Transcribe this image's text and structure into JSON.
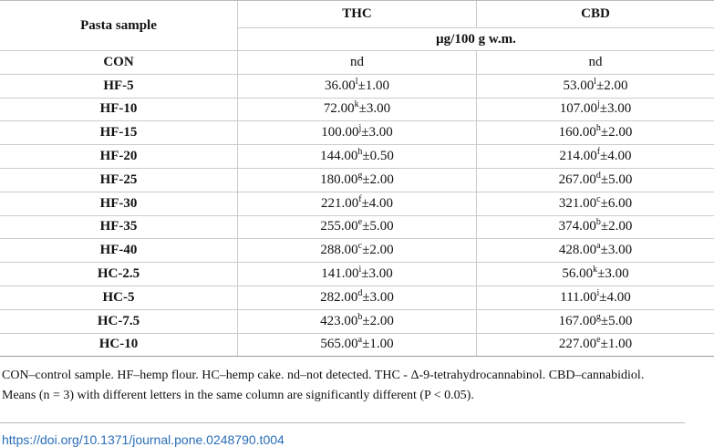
{
  "table": {
    "header": {
      "sample": "Pasta sample",
      "thc": "THC",
      "cbd": "CBD",
      "unit": "μg/100 g w.m."
    },
    "rows": [
      [
        "CON",
        "nd",
        "nd"
      ],
      [
        "HF-5",
        {
          "mean": "36.00",
          "letter": "l",
          "sd": "±1.00"
        },
        {
          "mean": "53.00",
          "letter": "l",
          "sd": "±2.00"
        }
      ],
      [
        "HF-10",
        {
          "mean": "72.00",
          "letter": "k",
          "sd": "±3.00"
        },
        {
          "mean": "107.00",
          "letter": "j",
          "sd": "±3.00"
        }
      ],
      [
        "HF-15",
        {
          "mean": "100.00",
          "letter": "j",
          "sd": "±3.00"
        },
        {
          "mean": "160.00",
          "letter": "h",
          "sd": "±2.00"
        }
      ],
      [
        "HF-20",
        {
          "mean": "144.00",
          "letter": "h",
          "sd": "±0.50"
        },
        {
          "mean": "214.00",
          "letter": "f",
          "sd": "±4.00"
        }
      ],
      [
        "HF-25",
        {
          "mean": "180.00",
          "letter": "g",
          "sd": "±2.00"
        },
        {
          "mean": "267.00",
          "letter": "d",
          "sd": "±5.00"
        }
      ],
      [
        "HF-30",
        {
          "mean": "221.00",
          "letter": "f",
          "sd": "±4.00"
        },
        {
          "mean": "321.00",
          "letter": "c",
          "sd": "±6.00"
        }
      ],
      [
        "HF-35",
        {
          "mean": "255.00",
          "letter": "e",
          "sd": "±5.00"
        },
        {
          "mean": "374.00",
          "letter": "b",
          "sd": "±2.00"
        }
      ],
      [
        "HF-40",
        {
          "mean": "288.00",
          "letter": "c",
          "sd": "±2.00"
        },
        {
          "mean": "428.00",
          "letter": "a",
          "sd": "±3.00"
        }
      ],
      [
        "HC-2.5",
        {
          "mean": "141.00",
          "letter": "i",
          "sd": "±3.00"
        },
        {
          "mean": "56.00",
          "letter": "k",
          "sd": "±3.00"
        }
      ],
      [
        "HC-5",
        {
          "mean": "282.00",
          "letter": "d",
          "sd": "±3.00"
        },
        {
          "mean": "111.00",
          "letter": "i",
          "sd": "±4.00"
        }
      ],
      [
        "HC-7.5",
        {
          "mean": "423.00",
          "letter": "b",
          "sd": "±2.00"
        },
        {
          "mean": "167.00",
          "letter": "g",
          "sd": "±5.00"
        }
      ],
      [
        "HC-10",
        {
          "mean": "565.00",
          "letter": "a",
          "sd": "±1.00"
        },
        {
          "mean": "227.00",
          "letter": "e",
          "sd": "±1.00"
        }
      ]
    ]
  },
  "footnote": "CON–control sample. HF–hemp flour. HC–hemp cake. nd–not detected. THC - Δ-9-tetrahydrocannabinol. CBD–cannabidiol. Means (n = 3) with different letters in the same column are significantly different (P < 0.05).",
  "doi": "https://doi.org/10.1371/journal.pone.0248790.t004"
}
